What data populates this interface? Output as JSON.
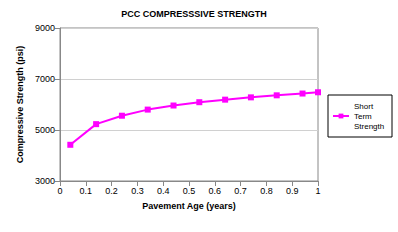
{
  "chart_data": {
    "type": "line",
    "title": "PCC COMPRESSSIVE STRENGTH",
    "x_label": "Pavement Age (years)",
    "y_label": "Compressive Strength (psi)",
    "x": [
      0.04,
      0.14,
      0.24,
      0.34,
      0.44,
      0.54,
      0.64,
      0.74,
      0.84,
      0.94,
      1.0
    ],
    "series": [
      {
        "name": "Short Term Strength",
        "color": "#ff00ff",
        "marker": "square",
        "values": [
          4420,
          5230,
          5560,
          5800,
          5960,
          6090,
          6190,
          6280,
          6360,
          6430,
          6480
        ]
      }
    ],
    "xlim": [
      0,
      1
    ],
    "xticks": [
      0,
      0.1,
      0.2,
      0.3,
      0.4,
      0.5,
      0.6,
      0.7,
      0.8,
      0.9,
      1
    ],
    "ylim": [
      3000,
      9000
    ],
    "yticks": [
      3000,
      5000,
      7000,
      9000
    ],
    "grid": true,
    "legend": "right"
  }
}
